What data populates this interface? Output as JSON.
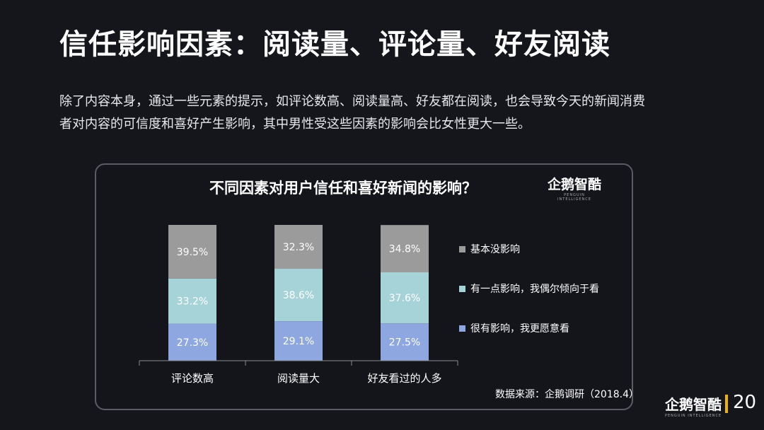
{
  "slide": {
    "title": "信任影响因素：阅读量、评论量、好友阅读",
    "paragraph_lines": [
      "除了内容本身，通过一些元素的提示，如评论数高、阅读量高、好友都在阅读，也会导致今天的新闻消费",
      "者对内容的可信度和喜好产生影响，其中男性受这些因素的影响会比女性更大一些。"
    ],
    "source": "数据来源：企鹅调研（2018.4）",
    "logo_text": "企鹅智酷",
    "logo_subtext": "PENGUIN INTELLIGENCE",
    "page_number": "20"
  },
  "chart_data": {
    "type": "bar",
    "stacked": true,
    "title": "不同因素对用户信任和喜好新闻的影响？",
    "categories": [
      "评论数高",
      "阅读量大",
      "好友看过的人多"
    ],
    "series": [
      {
        "name": "很有影响，我更愿意看",
        "values": [
          27.3,
          29.1,
          27.5
        ],
        "labels": [
          "27.3%",
          "29.1%",
          "27.5%"
        ],
        "color": "#8fa7e0"
      },
      {
        "name": "有一点影响，我偶尔倾向于看",
        "values": [
          33.2,
          38.6,
          37.6
        ],
        "labels": [
          "33.2%",
          "38.6%",
          "37.6%"
        ],
        "color": "#a6d3d8"
      },
      {
        "name": "基本没影响",
        "values": [
          39.5,
          32.3,
          34.8
        ],
        "labels": [
          "39.5%",
          "32.3%",
          "34.8%"
        ],
        "color": "#9b9b9b"
      }
    ],
    "ylim": [
      0,
      100
    ],
    "grid": false,
    "legend_position": "right"
  }
}
